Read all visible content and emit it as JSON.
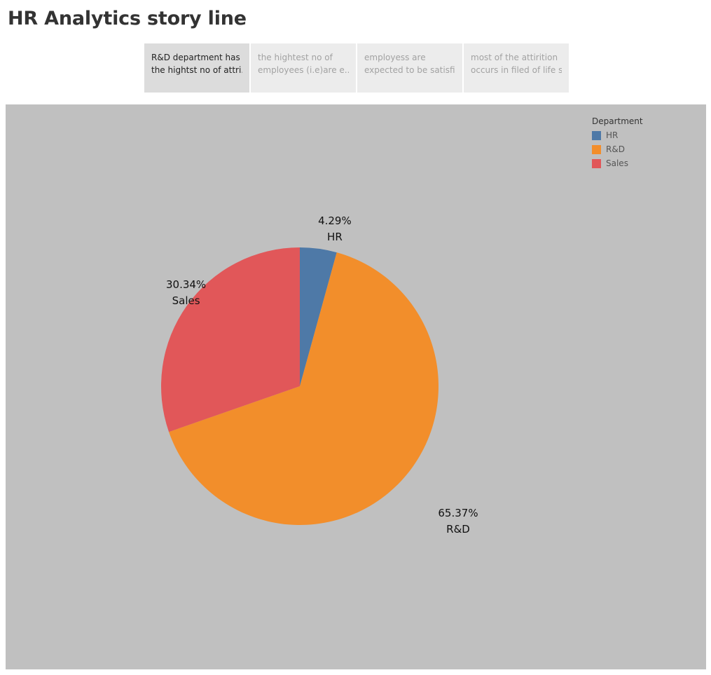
{
  "page": {
    "title": "HR Analytics story line"
  },
  "story_points": [
    {
      "line1": "R&D department has",
      "line2": "the hightst no of attri..",
      "active": true
    },
    {
      "line1": "the hightest no of",
      "line2": "employees (i.e)are e..",
      "active": false
    },
    {
      "line1": "employess are",
      "line2": "expected to be satisfi..",
      "active": false
    },
    {
      "line1": "most of the attirition",
      "line2": "occurs in filed of life s..",
      "active": false
    }
  ],
  "legend": {
    "title": "Department",
    "items": [
      {
        "label": "HR",
        "color": "#4e79a7"
      },
      {
        "label": "R&D",
        "color": "#f28e2b"
      },
      {
        "label": "Sales",
        "color": "#e15759"
      }
    ]
  },
  "chart_data": {
    "type": "pie",
    "legend_title": "Department",
    "legend_position": "top-right",
    "slices": [
      {
        "category": "HR",
        "percent": 4.29,
        "label": "4.29%",
        "color": "#4e79a7"
      },
      {
        "category": "R&D",
        "percent": 65.37,
        "label": "65.37%",
        "color": "#f28e2b"
      },
      {
        "category": "Sales",
        "percent": 30.34,
        "label": "30.34%",
        "color": "#e15759"
      }
    ]
  }
}
